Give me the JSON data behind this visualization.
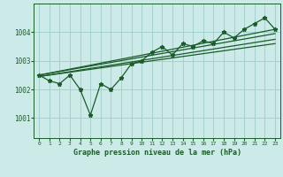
{
  "title": "Graphe pression niveau de la mer (hPa)",
  "bg_color": "#cceae7",
  "line_color": "#1a5c2a",
  "grid_color": "#9ececa",
  "xlim": [
    -0.5,
    23.5
  ],
  "ylim": [
    1000.3,
    1005.0
  ],
  "yticks": [
    1001,
    1002,
    1003,
    1004
  ],
  "xtick_labels": [
    "0",
    "1",
    "2",
    "3",
    "4",
    "5",
    "6",
    "7",
    "8",
    "9",
    "10",
    "11",
    "12",
    "13",
    "14",
    "15",
    "16",
    "17",
    "18",
    "19",
    "20",
    "21",
    "22",
    "23"
  ],
  "pressure_values": [
    1002.5,
    1002.3,
    1002.2,
    1002.5,
    1002.0,
    1001.1,
    1002.2,
    1002.0,
    1002.4,
    1002.9,
    1003.0,
    1003.3,
    1003.5,
    1003.2,
    1003.6,
    1003.5,
    1003.7,
    1003.6,
    1004.0,
    1003.8,
    1004.1,
    1004.3,
    1004.5,
    1004.1
  ],
  "trend1_x": [
    0,
    23
  ],
  "trend1_y": [
    1002.5,
    1004.1
  ],
  "trend2_x": [
    0,
    23
  ],
  "trend2_y": [
    1002.5,
    1003.95
  ],
  "trend3_x": [
    0,
    23
  ],
  "trend3_y": [
    1002.45,
    1003.75
  ],
  "trend4_x": [
    0,
    23
  ],
  "trend4_y": [
    1002.45,
    1003.6
  ]
}
